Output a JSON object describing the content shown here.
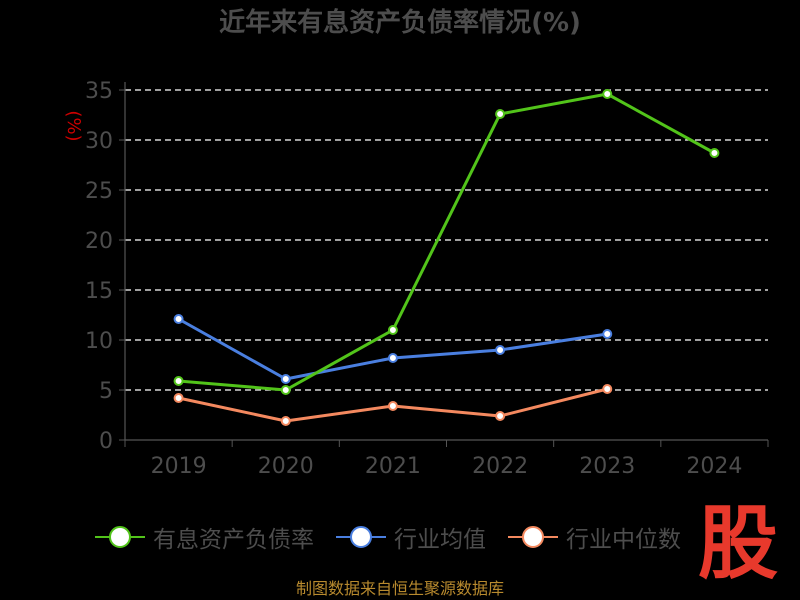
{
  "chart_data": {
    "type": "line",
    "title": "近年来有息资产负债率情况(%)",
    "ylabel": "(%)",
    "xlabel": "",
    "categories": [
      "2019",
      "2020",
      "2021",
      "2022",
      "2023",
      "2024"
    ],
    "ylim": [
      0,
      35
    ],
    "yticks": [
      "0",
      "5",
      "10",
      "15",
      "20",
      "25",
      "30",
      "35"
    ],
    "grid": true,
    "legend_position": "bottom",
    "series": [
      {
        "name": "有息资产负债率",
        "color": "#52c41a",
        "values": [
          5.9,
          5.0,
          11.0,
          32.6,
          34.6,
          28.7
        ]
      },
      {
        "name": "行业均值",
        "color": "#4a7fe0",
        "values": [
          12.1,
          6.1,
          8.2,
          9.0,
          10.6,
          null
        ]
      },
      {
        "name": "行业中位数",
        "color": "#f4895f",
        "values": [
          4.2,
          1.9,
          3.4,
          2.4,
          5.1,
          null
        ]
      }
    ]
  },
  "legend": [
    {
      "label": "有息资产负债率",
      "color": "#52c41a"
    },
    {
      "label": "行业均值",
      "color": "#4a7fe0"
    },
    {
      "label": "行业中位数",
      "color": "#f4895f"
    }
  ],
  "source": "制图数据来自恒生聚源数据库",
  "logo": "股"
}
